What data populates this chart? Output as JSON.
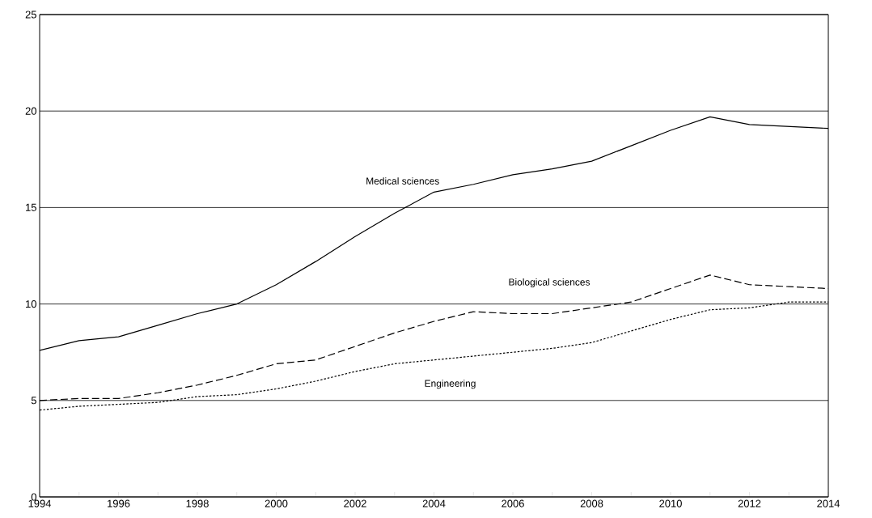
{
  "chart_data": {
    "type": "line",
    "x": [
      1994,
      1995,
      1996,
      1997,
      1998,
      1999,
      2000,
      2001,
      2002,
      2003,
      2004,
      2005,
      2006,
      2007,
      2008,
      2009,
      2010,
      2011,
      2012,
      2013,
      2014
    ],
    "series": [
      {
        "name": "Medical sciences",
        "color": "#000000",
        "line_style": "solid",
        "values": [
          7.6,
          8.1,
          8.3,
          8.9,
          9.5,
          10.0,
          11.0,
          12.2,
          13.5,
          14.7,
          15.8,
          16.2,
          16.7,
          17.0,
          17.4,
          18.2,
          19.0,
          19.7,
          19.3,
          19.2,
          19.1
        ]
      },
      {
        "name": "Biological sciences",
        "color": "#000000",
        "line_style": "dashed",
        "values": [
          5.0,
          5.1,
          5.1,
          5.4,
          5.8,
          6.3,
          6.9,
          7.1,
          7.8,
          8.5,
          9.1,
          9.6,
          9.5,
          9.5,
          9.8,
          10.1,
          10.8,
          11.5,
          11.0,
          10.9,
          10.8
        ]
      },
      {
        "name": "Engineering",
        "color": "#000000",
        "line_style": "dotted",
        "values": [
          4.5,
          4.7,
          4.8,
          4.9,
          5.2,
          5.3,
          5.6,
          6.0,
          6.5,
          6.9,
          7.1,
          7.3,
          7.5,
          7.7,
          8.0,
          8.6,
          9.2,
          9.7,
          9.8,
          10.1,
          10.1
        ]
      }
    ],
    "xlim": [
      1994,
      2014
    ],
    "xticks": [
      1994,
      {
        "value": 1995,
        "label": null
      },
      1996,
      {
        "value": 1997,
        "label": null
      },
      1998,
      {
        "value": 1999,
        "label": null
      },
      2000,
      {
        "value": 2001,
        "label": null
      },
      2002,
      {
        "value": 2003,
        "label": null
      },
      2004,
      {
        "value": 2005,
        "label": null
      },
      2006,
      {
        "value": 2007,
        "label": null
      },
      2008,
      {
        "value": 2009,
        "label": null
      },
      2010,
      {
        "value": 2011,
        "label": null
      },
      2012,
      {
        "value": 2013,
        "label": null
      },
      2014
    ],
    "ylim": [
      0,
      25
    ],
    "yticks": [
      0,
      5,
      10,
      15,
      20,
      25
    ],
    "grid": "y",
    "legend": false,
    "marker": "none"
  }
}
